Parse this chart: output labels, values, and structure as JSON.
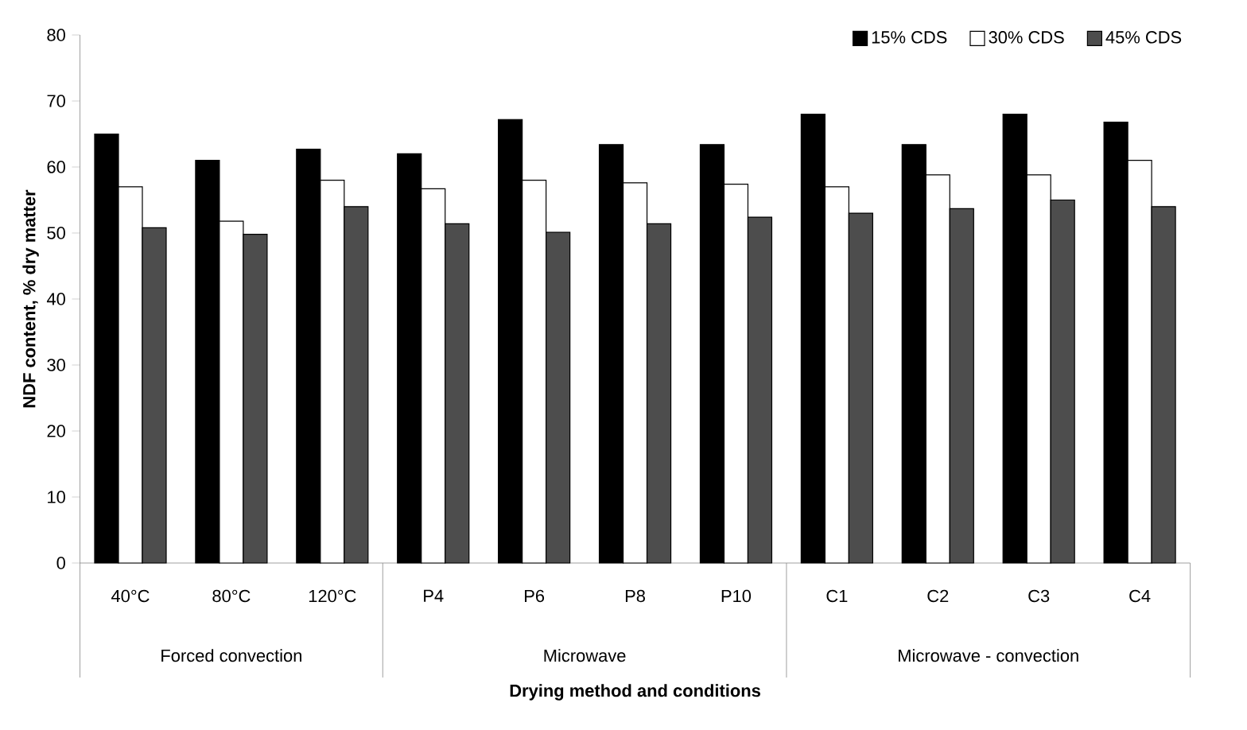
{
  "chart_data": {
    "type": "bar",
    "xlabel": "Drying method and conditions",
    "ylabel": "NDF content, % dry matter",
    "categories": [
      "40°C",
      "80°C",
      "120°C",
      "P4",
      "P6",
      "P8",
      "P10",
      "C1",
      "C2",
      "C3",
      "C4"
    ],
    "series": [
      {
        "name": "15% CDS",
        "color": "#000000",
        "values": [
          65,
          61,
          62.7,
          62,
          67.2,
          63.4,
          63.4,
          68,
          63.4,
          68,
          66.8
        ]
      },
      {
        "name": "30% CDS",
        "color": "#ffffff",
        "values": [
          57,
          51.8,
          58,
          56.7,
          58,
          57.6,
          57.4,
          57,
          58.8,
          58.8,
          61
        ]
      },
      {
        "name": "45% CDS",
        "color": "#4d4d4d",
        "values": [
          50.8,
          49.8,
          54,
          51.4,
          50.1,
          51.4,
          52.4,
          53,
          53.7,
          55,
          54
        ]
      }
    ],
    "annotations": [
      "Forced convection",
      "Microwave",
      "Microwave - convection"
    ],
    "ylim": [
      0,
      80
    ],
    "yticks": [
      0,
      10,
      20,
      30,
      40,
      50,
      60,
      70,
      80
    ],
    "grid": false,
    "legend": "top right"
  }
}
